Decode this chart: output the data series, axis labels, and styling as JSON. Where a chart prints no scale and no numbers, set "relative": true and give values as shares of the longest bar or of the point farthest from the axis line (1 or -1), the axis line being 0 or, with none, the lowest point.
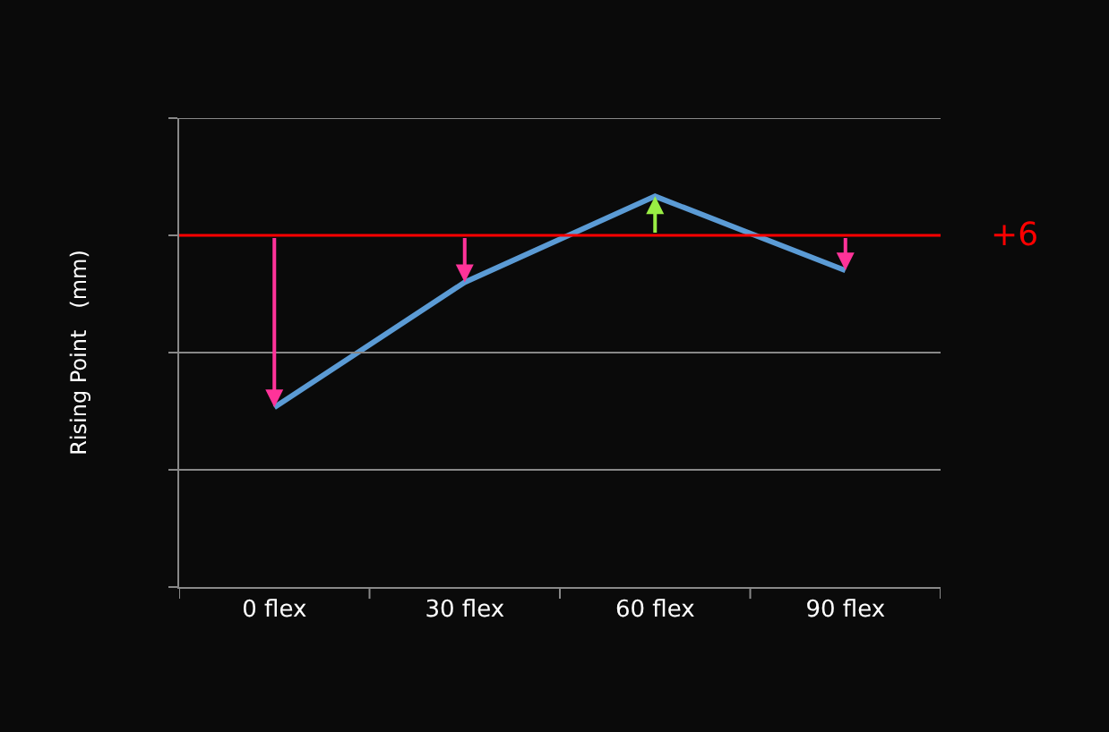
{
  "chart_data": {
    "type": "line",
    "relative": true,
    "ylabel": "Rising Point　(mm)",
    "categories": [
      "0 flex",
      "30 flex",
      "60 flex",
      "90 flex"
    ],
    "series": [
      {
        "color": "#5b9bd5",
        "values": [
          0.46,
          0.78,
          1,
          0.81
        ]
      }
    ],
    "ref_lines": [
      {
        "axis": "y",
        "value": 0.3,
        "color": "#888888"
      },
      {
        "axis": "y",
        "value": 0.6,
        "color": "#888888"
      },
      {
        "axis": "y",
        "value": 1.2,
        "color": "#888888"
      },
      {
        "axis": "y",
        "value": 0.9,
        "color": "#ff0000"
      }
    ],
    "annotations": [
      "+6"
    ],
    "marker": "none",
    "line_style": "solid"
  }
}
